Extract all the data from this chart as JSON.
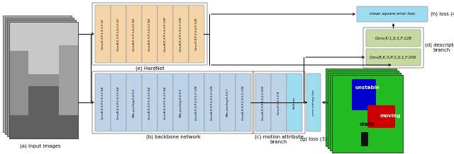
{
  "bg_color": "#ffffff",
  "hardnet_color": "#f5d5a8",
  "backbone_color": "#bdd3e8",
  "motion_color": "#bdd3e8",
  "softmax_color": "#9edcf0",
  "ce_color": "#9edcf0",
  "mse_color": "#9edcf0",
  "desc_color": "#c6d9a0",
  "hardnet_labels": [
    "Conv,K:3,P:1,S:1,F:32",
    "ConvB,K:3,P:1,S:1,F:32",
    "ConvB,K:3,P:1,S:2,F:64",
    "ConvB,K:3,P:1,S:1,F:64",
    "ConvB,K:3,P:1,S:2,F:128",
    "ConvB,K:3,P:1,S:1,F:128",
    "Conv,K:8,P:1,S:2,F:128"
  ],
  "backbone_labels": [
    "ConvB,K:3,P:1,S:1,F:64",
    "ConvB,K:3,P:1,S:1,F:64",
    "Max-pooling,K:2,S:2",
    "ConvB,K:3,P:1,S:1,F:64",
    "ConvB,K:3,P:1,S:1,F:64",
    "Max-pooling,K:2,S:2",
    "ConvB,K:3,P:1,S:1,F:128",
    "ConvB,K:3,P:1,S:1,F:128",
    "Max-pooling,K:2,S:?",
    "ConvB,K:3,P:1,S:1,F:128"
  ],
  "motion_labels": [
    "ConvB,K:3,P:1,S:1,F:256",
    "Conv,K:1,S:1,F:4",
    "Softmax"
  ],
  "desc_label1": "Conv,K:1,S:1,F:128",
  "desc_label2": "ConvB,K:3,P:1,S:1,F:256",
  "mse_label": "mean square error loss",
  "ce_label": "cross entropy loss"
}
